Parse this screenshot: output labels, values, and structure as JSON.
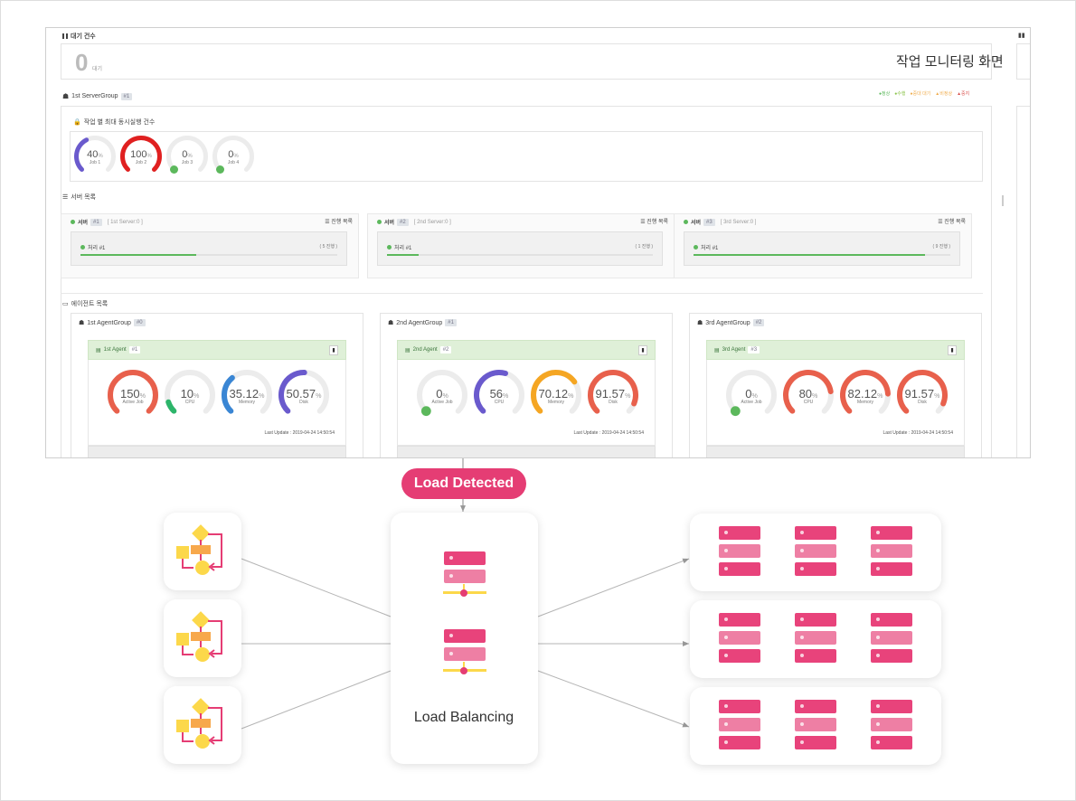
{
  "caption": "작업 모니터링 화면",
  "dashboard": {
    "wait_section": {
      "title": "대기 건수",
      "count": "0",
      "unit": "대기"
    },
    "server_group": {
      "name": "1st ServerGroup",
      "tag": "#1"
    },
    "legend": [
      {
        "label": "정상",
        "color": "#5cb85c",
        "shape": "dot"
      },
      {
        "label": "수행",
        "color": "#8bc34a",
        "shape": "dot"
      },
      {
        "label": "중대 대기",
        "color": "#f0ad4e",
        "shape": "dot"
      },
      {
        "label": "비정상",
        "color": "#f0ad4e",
        "shape": "triangle"
      },
      {
        "label": "중지",
        "color": "#d9534f",
        "shape": "triangle"
      }
    ],
    "job_section": {
      "title": "작업 별 최대 동시실행 건수",
      "jobs": [
        {
          "value": "40",
          "unit": "%",
          "label": "Job 1",
          "pct": 40,
          "color": "#6a5acd"
        },
        {
          "value": "100",
          "unit": "%",
          "label": "Job 2",
          "pct": 100,
          "color": "#e02020"
        },
        {
          "value": "0",
          "unit": "%",
          "label": "Job 3",
          "pct": 0,
          "color": "#5cb85c"
        },
        {
          "value": "0",
          "unit": "%",
          "label": "Job 4",
          "pct": 0,
          "color": "#5cb85c"
        }
      ]
    },
    "server_list": {
      "title": "서버 목록",
      "servers": [
        {
          "label": "서버",
          "tag": "#1",
          "name": "[ 1st Server:0 ]",
          "action": "진행 목록",
          "item": "처리 #1",
          "count": "( 5 진행 )",
          "progress": 0.45
        },
        {
          "label": "서버",
          "tag": "#2",
          "name": "[ 2nd Server:0 ]",
          "action": "진행 목록",
          "item": "처리 #1",
          "count": "( 1 진행 )",
          "progress": 0.12
        },
        {
          "label": "서버",
          "tag": "#3",
          "name": "[ 3rd Server:0 ]",
          "action": "진행 목록",
          "item": "처리 #1",
          "count": "( 9 진행 )",
          "progress": 0.9
        }
      ]
    },
    "agent_list": {
      "title": "에이전트 목록",
      "groups": [
        {
          "group": "1st AgentGroup",
          "group_tag": "#0",
          "agent": "1st Agent",
          "agent_tag": "#1",
          "update": "Last Update : 2019-04-24 14:50:54",
          "gauges": [
            {
              "value": "150",
              "unit": "%",
              "label": "Active Job",
              "pct": 100,
              "color": "#e8604c"
            },
            {
              "value": "10",
              "unit": "%",
              "label": "CPU",
              "pct": 10,
              "color": "#2db56a"
            },
            {
              "value": "35.12",
              "unit": "%",
              "label": "Memory",
              "pct": 35.12,
              "color": "#3a86d4"
            },
            {
              "value": "50.57",
              "unit": "%",
              "label": "Disk",
              "pct": 50.57,
              "color": "#6a5acd"
            }
          ]
        },
        {
          "group": "2nd AgentGroup",
          "group_tag": "#1",
          "agent": "2nd Agent",
          "agent_tag": "#2",
          "update": "Last Update : 2019-04-24 14:50:54",
          "gauges": [
            {
              "value": "0",
              "unit": "%",
              "label": "Active Job",
              "pct": 0,
              "color": "#5cb85c"
            },
            {
              "value": "56",
              "unit": "%",
              "label": "CPU",
              "pct": 56,
              "color": "#6a5acd"
            },
            {
              "value": "70.12",
              "unit": "%",
              "label": "Memory",
              "pct": 70.12,
              "color": "#f5a623"
            },
            {
              "value": "91.57",
              "unit": "%",
              "label": "Disk",
              "pct": 91.57,
              "color": "#e8604c"
            }
          ]
        },
        {
          "group": "3rd AgentGroup",
          "group_tag": "#2",
          "agent": "3rd Agent",
          "agent_tag": "#3",
          "update": "Last Update : 2019-04-24 14:50:54",
          "gauges": [
            {
              "value": "0",
              "unit": "%",
              "label": "Active Job",
              "pct": 0,
              "color": "#5cb85c"
            },
            {
              "value": "80",
              "unit": "%",
              "label": "CPU",
              "pct": 80,
              "color": "#e8604c"
            },
            {
              "value": "82.12",
              "unit": "%",
              "label": "Memory",
              "pct": 82.12,
              "color": "#e8604c"
            },
            {
              "value": "91.57",
              "unit": "%",
              "label": "Disk",
              "pct": 91.57,
              "color": "#e8604c"
            }
          ]
        }
      ]
    }
  },
  "diagram": {
    "badge": "Load Detected",
    "center_label": "Load Balancing",
    "inputs": [
      "workflow-icon",
      "workflow-icon",
      "workflow-icon"
    ],
    "outputs": [
      "server-rack-group",
      "server-rack-group",
      "server-rack-group"
    ],
    "colors": {
      "accent": "#e53d74",
      "server_dark": "#e8437b",
      "server_light": "#ee7fa4",
      "flow_yellow": "#fcd84a",
      "flow_orange": "#f7a84c",
      "line": "#b5b5b5"
    }
  }
}
